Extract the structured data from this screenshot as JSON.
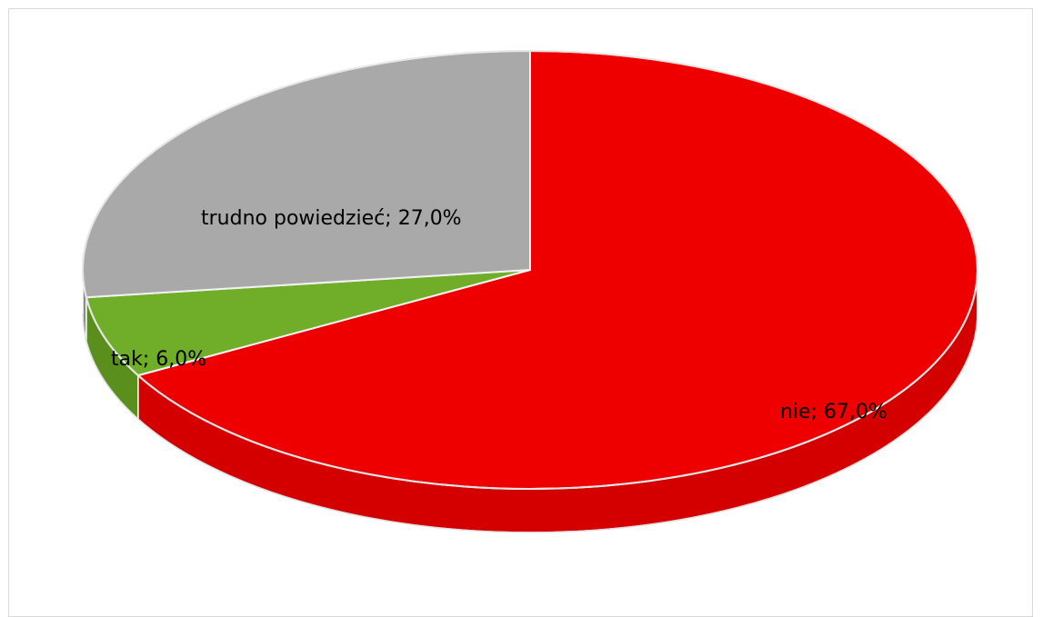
{
  "chart_data": {
    "type": "pie",
    "style": "3d",
    "title": "",
    "slices": [
      {
        "label": "nie",
        "value": 67.0,
        "label_text": "nie; 67,0%",
        "color": "#EE0000",
        "side_color": "#D40000"
      },
      {
        "label": "tak",
        "value": 6.0,
        "label_text": "tak; 6,0%",
        "color": "#70AD28",
        "side_color": "#5A8F1E"
      },
      {
        "label": "trudno powiedzieć",
        "value": 27.0,
        "label_text": "trudno powiedzieć; 27,0%",
        "color": "#A9A9A9",
        "side_color": "#8C8C8C"
      }
    ],
    "legend": "none"
  }
}
